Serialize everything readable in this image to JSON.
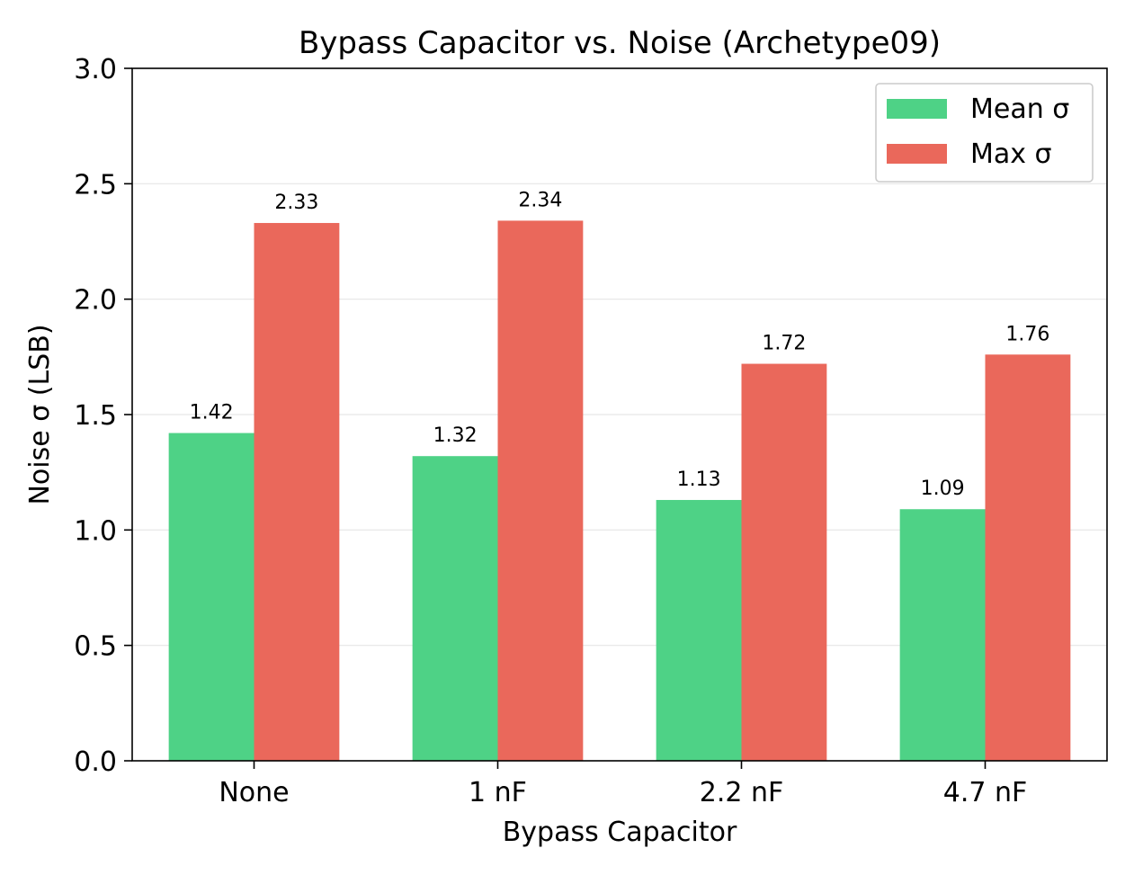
{
  "chart_data": {
    "type": "bar",
    "title": "Bypass Capacitor vs. Noise (Archetype09)",
    "xlabel": "Bypass Capacitor",
    "ylabel": "Noise σ (LSB)",
    "categories": [
      "None",
      "1 nF",
      "2.2 nF",
      "4.7 nF"
    ],
    "series": [
      {
        "name": "Mean σ",
        "values": [
          1.42,
          1.32,
          1.13,
          1.09
        ],
        "color": "#4ed286"
      },
      {
        "name": "Max σ",
        "values": [
          2.33,
          2.34,
          1.72,
          1.76
        ],
        "color": "#ea685b"
      }
    ],
    "ylim": [
      0,
      3.0
    ],
    "yticks": [
      "0.0",
      "0.5",
      "1.0",
      "1.5",
      "2.0",
      "2.5",
      "3.0"
    ],
    "grid": "horizontal",
    "legend": "top-right"
  }
}
